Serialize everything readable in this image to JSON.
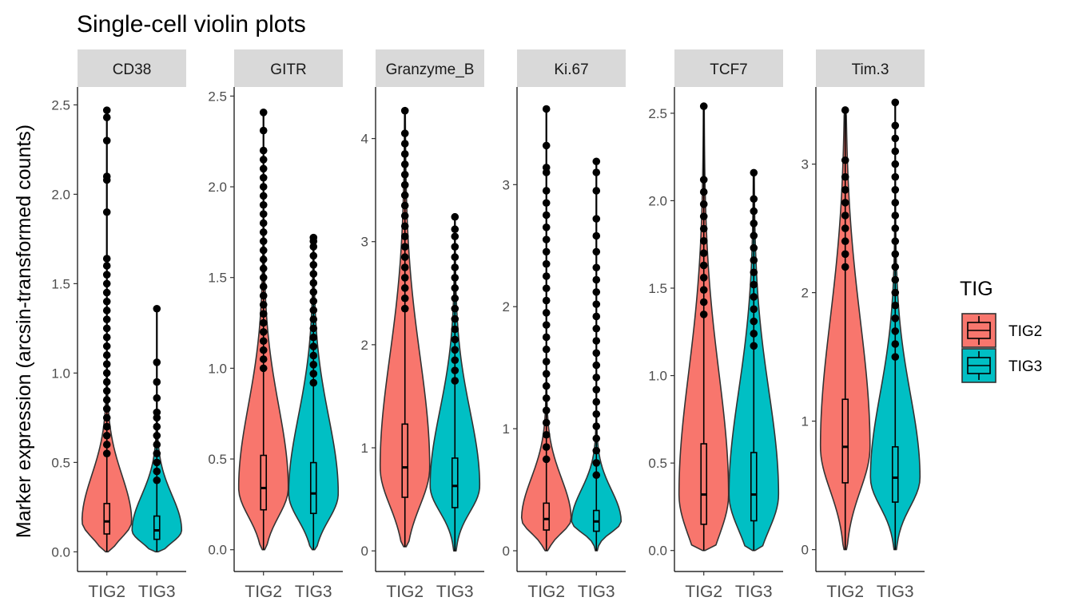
{
  "chart_data": {
    "type": "violin",
    "title": "Single-cell violin plots",
    "ylabel": "Marker expression (arcsin-transformed counts)",
    "categories": [
      "TIG2",
      "TIG3"
    ],
    "legend": {
      "title": "TIG",
      "position": "right",
      "entries": [
        {
          "label": "TIG2",
          "color": "#F8766D"
        },
        {
          "label": "TIG3",
          "color": "#00BFC4"
        }
      ]
    },
    "panels": [
      {
        "name": "CD38",
        "ylim": [
          -0.11,
          2.6
        ],
        "yticks": [
          0.0,
          0.5,
          1.0,
          1.5,
          2.0,
          2.5
        ],
        "ytick_labels": [
          "0.0",
          "0.5",
          "1.0",
          "1.5",
          "2.0",
          "2.5"
        ],
        "groups": [
          {
            "name": "TIG2",
            "min": 0.0,
            "q1": 0.1,
            "median": 0.17,
            "q3": 0.27,
            "max": 2.47,
            "whisker_high": 0.52,
            "outliers": [
              0.55,
              0.6,
              0.65,
              0.7,
              0.75,
              0.8,
              0.85,
              0.9,
              0.95,
              1.0,
              1.05,
              1.1,
              1.15,
              1.2,
              1.25,
              1.3,
              1.35,
              1.4,
              1.45,
              1.5,
              1.55,
              1.6,
              1.64,
              1.9,
              2.08,
              2.1,
              2.3,
              2.43,
              2.47
            ]
          },
          {
            "name": "TIG3",
            "min": 0.0,
            "q1": 0.07,
            "median": 0.12,
            "q3": 0.2,
            "max": 1.36,
            "whisker_high": 0.36,
            "outliers": [
              0.4,
              0.45,
              0.5,
              0.55,
              0.6,
              0.65,
              0.7,
              0.75,
              0.78,
              0.86,
              0.95,
              1.06,
              1.36
            ]
          }
        ]
      },
      {
        "name": "GITR",
        "ylim": [
          -0.12,
          2.55
        ],
        "yticks": [
          0.0,
          0.5,
          1.0,
          1.5,
          2.0,
          2.5
        ],
        "ytick_labels": [
          "0.0",
          "0.5",
          "1.0",
          "1.5",
          "2.0",
          "2.5"
        ],
        "groups": [
          {
            "name": "TIG2",
            "min": 0.0,
            "q1": 0.22,
            "median": 0.34,
            "q3": 0.52,
            "max": 2.41,
            "whisker_high": 0.98,
            "outliers": [
              1.0,
              1.05,
              1.1,
              1.15,
              1.2,
              1.25,
              1.3,
              1.35,
              1.4,
              1.45,
              1.5,
              1.55,
              1.6,
              1.65,
              1.7,
              1.75,
              1.8,
              1.85,
              1.9,
              1.95,
              2.0,
              2.05,
              2.1,
              2.15,
              2.2,
              2.31,
              2.41
            ]
          },
          {
            "name": "TIG3",
            "min": 0.0,
            "q1": 0.2,
            "median": 0.31,
            "q3": 0.48,
            "max": 1.72,
            "whisker_high": 0.88,
            "outliers": [
              0.92,
              0.97,
              1.02,
              1.07,
              1.12,
              1.17,
              1.22,
              1.27,
              1.32,
              1.37,
              1.42,
              1.47,
              1.52,
              1.57,
              1.62,
              1.67,
              1.7,
              1.72
            ]
          }
        ]
      },
      {
        "name": "Granzyme_B",
        "ylim": [
          -0.2,
          4.5
        ],
        "yticks": [
          0,
          1,
          2,
          3,
          4
        ],
        "ytick_labels": [
          "0",
          "1",
          "2",
          "3",
          "4"
        ],
        "groups": [
          {
            "name": "TIG2",
            "min": 0.04,
            "q1": 0.52,
            "median": 0.81,
            "q3": 1.23,
            "max": 4.27,
            "whisker_high": 2.28,
            "outliers": [
              2.35,
              2.45,
              2.55,
              2.65,
              2.75,
              2.85,
              2.95,
              3.05,
              3.15,
              3.25,
              3.35,
              3.45,
              3.55,
              3.65,
              3.75,
              3.85,
              3.95,
              4.05,
              4.27
            ]
          },
          {
            "name": "TIG3",
            "min": 0.0,
            "q1": 0.42,
            "median": 0.63,
            "q3": 0.9,
            "max": 3.24,
            "whisker_high": 1.61,
            "outliers": [
              1.65,
              1.75,
              1.85,
              1.95,
              2.05,
              2.15,
              2.25,
              2.35,
              2.45,
              2.55,
              2.65,
              2.75,
              2.85,
              2.95,
              3.05,
              3.12,
              3.24
            ]
          }
        ]
      },
      {
        "name": "Ki.67",
        "ylim": [
          -0.17,
          3.8
        ],
        "yticks": [
          0,
          1,
          2,
          3
        ],
        "ytick_labels": [
          "0",
          "1",
          "2",
          "3"
        ],
        "groups": [
          {
            "name": "TIG2",
            "min": 0.0,
            "q1": 0.17,
            "median": 0.26,
            "q3": 0.39,
            "max": 3.62,
            "whisker_high": 0.7,
            "outliers": [
              0.75,
              0.85,
              0.95,
              1.05,
              1.15,
              1.25,
              1.35,
              1.45,
              1.55,
              1.65,
              1.75,
              1.85,
              1.95,
              2.05,
              2.15,
              2.25,
              2.35,
              2.45,
              2.55,
              2.65,
              2.75,
              2.85,
              2.95,
              3.1,
              3.14,
              3.32,
              3.62
            ]
          },
          {
            "name": "TIG3",
            "min": 0.0,
            "q1": 0.16,
            "median": 0.24,
            "q3": 0.33,
            "max": 3.19,
            "whisker_high": 0.58,
            "outliers": [
              0.62,
              0.72,
              0.82,
              0.92,
              1.02,
              1.12,
              1.22,
              1.32,
              1.42,
              1.52,
              1.62,
              1.72,
              1.82,
              1.92,
              2.02,
              2.12,
              2.22,
              2.32,
              2.45,
              2.58,
              2.72,
              2.95,
              3.1,
              3.19
            ]
          }
        ]
      },
      {
        "name": "TCF7",
        "ylim": [
          -0.12,
          2.65
        ],
        "yticks": [
          0.0,
          0.5,
          1.0,
          1.5,
          2.0,
          2.5
        ],
        "ytick_labels": [
          "0.0",
          "0.5",
          "1.0",
          "1.5",
          "2.0",
          "2.5"
        ],
        "groups": [
          {
            "name": "TIG2",
            "min": 0.0,
            "q1": 0.15,
            "median": 0.32,
            "q3": 0.61,
            "max": 2.54,
            "whisker_high": 1.3,
            "outliers": [
              1.35,
              1.42,
              1.49,
              1.56,
              1.63,
              1.7,
              1.77,
              1.84,
              1.91,
              1.98,
              2.05,
              2.12,
              2.54
            ]
          },
          {
            "name": "TIG3",
            "min": 0.0,
            "q1": 0.17,
            "median": 0.32,
            "q3": 0.56,
            "max": 2.16,
            "whisker_high": 1.13,
            "outliers": [
              1.17,
              1.24,
              1.31,
              1.38,
              1.45,
              1.52,
              1.59,
              1.66,
              1.73,
              1.8,
              1.87,
              1.94,
              2.01,
              2.16
            ]
          }
        ]
      },
      {
        "name": "Tim.3",
        "ylim": [
          -0.17,
          3.6
        ],
        "yticks": [
          0,
          1,
          2,
          3
        ],
        "ytick_labels": [
          "0",
          "1",
          "2",
          "3"
        ],
        "groups": [
          {
            "name": "TIG2",
            "min": 0.0,
            "q1": 0.52,
            "median": 0.8,
            "q3": 1.17,
            "max": 3.42,
            "whisker_high": 2.14,
            "outliers": [
              2.2,
              2.3,
              2.4,
              2.5,
              2.6,
              2.7,
              2.8,
              2.9,
              3.03,
              3.42
            ]
          },
          {
            "name": "TIG3",
            "min": 0.0,
            "q1": 0.37,
            "median": 0.56,
            "q3": 0.8,
            "max": 3.48,
            "whisker_high": 1.45,
            "outliers": [
              1.5,
              1.6,
              1.7,
              1.8,
              1.9,
              2.0,
              2.1,
              2.2,
              2.3,
              2.4,
              2.5,
              2.6,
              2.7,
              2.8,
              2.9,
              3.0,
              3.1,
              3.2,
              3.3,
              3.48
            ]
          }
        ]
      }
    ]
  }
}
